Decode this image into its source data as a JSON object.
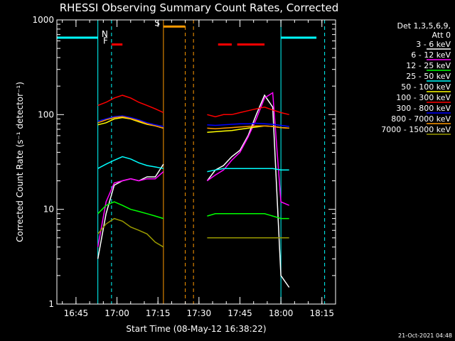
{
  "chart_data": {
    "type": "line",
    "title": "RHESSI Observing Summary Count Rates, Corrected",
    "xlabel": "Start Time (08-May-12 16:38:22)",
    "ylabel": "Corrected Count Rate (s⁻¹ detector⁻¹)",
    "yscale": "log",
    "ylim": [
      1,
      1000
    ],
    "xlim": [
      "16:38",
      "18:20"
    ],
    "x_ticks": [
      "16:45",
      "17:00",
      "17:15",
      "17:30",
      "17:45",
      "18:00",
      "18:15"
    ],
    "y_ticks": [
      "1",
      "10",
      "100",
      "1000"
    ],
    "legend_header": [
      "Det 1,3,5,6,9,",
      "Att 0"
    ],
    "legend_position": "outside-right",
    "timestamp": "21-Oct-2021 04:48",
    "x": [
      "16:53",
      "16:56",
      "16:59",
      "17:02",
      "17:05",
      "17:08",
      "17:11",
      "17:14",
      "17:17",
      "17:30",
      "17:33",
      "17:36",
      "17:39",
      "17:42",
      "17:45",
      "17:48",
      "17:51",
      "17:54",
      "17:57",
      "18:00",
      "18:03"
    ],
    "series": [
      {
        "name": "3 - 6 keV",
        "color": "#ffffff",
        "values": [
          3,
          9,
          18,
          20,
          21,
          20,
          22,
          22,
          30,
          null,
          20,
          26,
          29,
          36,
          42,
          60,
          100,
          160,
          120,
          2,
          1.5
        ]
      },
      {
        "name": "6 - 12 keV",
        "color": "#ff00ff",
        "values": [
          4,
          12,
          19,
          20,
          21,
          20,
          21,
          21,
          25,
          null,
          20,
          23,
          26,
          33,
          40,
          58,
          90,
          150,
          170,
          12,
          11
        ]
      },
      {
        "name": "12 - 25 keV",
        "color": "#00ff00",
        "values": [
          9,
          11,
          12,
          11,
          10,
          9.5,
          9,
          8.5,
          8,
          null,
          8.5,
          9,
          9,
          9,
          9,
          9,
          9,
          9,
          8.5,
          8,
          8
        ]
      },
      {
        "name": "25 - 50 keV",
        "color": "#00ffff",
        "values": [
          27,
          30,
          33,
          36,
          34,
          31,
          29,
          28,
          27,
          null,
          25,
          26,
          27,
          27,
          27,
          27,
          27,
          27,
          27,
          26,
          26
        ]
      },
      {
        "name": "50 - 100 keV",
        "color": "#ffff00",
        "values": [
          78,
          82,
          90,
          93,
          90,
          84,
          79,
          76,
          72,
          null,
          65,
          66,
          67,
          68,
          70,
          72,
          74,
          76,
          75,
          73,
          72
        ]
      },
      {
        "name": "100 - 300 keV",
        "color": "#ff0000",
        "values": [
          125,
          135,
          150,
          160,
          150,
          135,
          125,
          115,
          105,
          null,
          100,
          95,
          100,
          100,
          105,
          110,
          115,
          120,
          112,
          105,
          100
        ]
      },
      {
        "name": "300 - 800 keV",
        "color": "#0000ff",
        "values": [
          85,
          90,
          95,
          97,
          93,
          88,
          82,
          78,
          75,
          null,
          78,
          77,
          78,
          79,
          80,
          80,
          81,
          80,
          79,
          77,
          75
        ]
      },
      {
        "name": "800 - 7000 keV",
        "color": "#ff9900",
        "values": [
          82,
          88,
          93,
          95,
          91,
          86,
          80,
          76,
          72,
          null,
          72,
          71,
          72,
          73,
          74,
          75,
          76,
          76,
          75,
          73,
          72
        ]
      },
      {
        "name": "7000 - 15000 keV",
        "color": "#999900",
        "values": [
          5.5,
          7,
          8,
          7.5,
          6.5,
          6,
          5.5,
          4.5,
          4,
          null,
          5,
          5,
          5,
          5,
          5,
          5,
          5,
          5,
          5,
          5,
          5
        ]
      }
    ],
    "flags": [
      {
        "label": "",
        "color": "#00ffff",
        "y": 650,
        "from": "16:38",
        "to": "16:53"
      },
      {
        "label": "N",
        "color": "#00ffff",
        "y": 650,
        "from": "16:58",
        "to": "16:58"
      },
      {
        "label": "F",
        "color": "#ff0000",
        "y": 550,
        "from": "16:58",
        "to": "17:02"
      },
      {
        "label": "S",
        "color": "#ff9900",
        "y": 850,
        "from": "17:17",
        "to": "17:25"
      },
      {
        "label": "",
        "color": "#ff0000",
        "y": 550,
        "from": "17:37",
        "to": "17:42"
      },
      {
        "label": "",
        "color": "#ff0000",
        "y": 550,
        "from": "17:44",
        "to": "17:54"
      },
      {
        "label": "",
        "color": "#00ffff",
        "y": 650,
        "from": "18:00",
        "to": "18:13"
      }
    ],
    "vlines": [
      {
        "at": "16:53",
        "color": "#00ffff",
        "style": "solid"
      },
      {
        "at": "16:58",
        "color": "#00ffff",
        "style": "dashed"
      },
      {
        "at": "17:17",
        "color": "#ff9900",
        "style": "solid"
      },
      {
        "at": "17:25",
        "color": "#ff9900",
        "style": "dashed"
      },
      {
        "at": "17:28",
        "color": "#ff9900",
        "style": "dashed"
      },
      {
        "at": "18:00",
        "color": "#00ffff",
        "style": "solid"
      },
      {
        "at": "18:16",
        "color": "#00ffff",
        "style": "dashed"
      }
    ]
  }
}
